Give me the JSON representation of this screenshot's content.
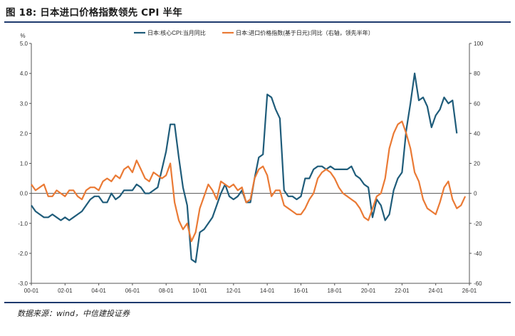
{
  "figure": {
    "title": "图 18: 日本进口价格指数领先 CPI 半年",
    "source": "数据来源：wind，中信建投证券"
  },
  "colors": {
    "core": "#1f5c7a",
    "import": "#ea7a35",
    "axis": "#555555",
    "zero": "#555555"
  },
  "chart_data": {
    "type": "line",
    "y_unit_left": "%",
    "ylim_left": [
      -3.0,
      5.0
    ],
    "ylim_right": [
      -60,
      100
    ],
    "xlim": [
      2000,
      2026
    ],
    "left_ticks": [
      "5.0",
      "4.0",
      "3.0",
      "2.0",
      "1.0",
      "0.0",
      "-1.0",
      "-2.0",
      "-3.0"
    ],
    "right_ticks": [
      "100",
      "80",
      "60",
      "40",
      "20",
      "0",
      "-20",
      "-40",
      "-60"
    ],
    "x_ticks": [
      "00-01",
      "02-01",
      "04-01",
      "06-01",
      "08-01",
      "10-01",
      "12-01",
      "14-01",
      "16-01",
      "18-01",
      "20-01",
      "22-01",
      "24-01",
      "26-01"
    ],
    "series": [
      {
        "name": "日本:核心CPI:当月同比",
        "axis": "left",
        "x": [
          2000.0,
          2000.25,
          2000.5,
          2000.75,
          2001.0,
          2001.25,
          2001.5,
          2001.75,
          2002.0,
          2002.25,
          2002.5,
          2002.75,
          2003.0,
          2003.25,
          2003.5,
          2003.75,
          2004.0,
          2004.25,
          2004.5,
          2004.75,
          2005.0,
          2005.25,
          2005.5,
          2005.75,
          2006.0,
          2006.25,
          2006.5,
          2006.75,
          2007.0,
          2007.25,
          2007.5,
          2007.75,
          2008.0,
          2008.25,
          2008.5,
          2008.75,
          2009.0,
          2009.25,
          2009.5,
          2009.75,
          2010.0,
          2010.25,
          2010.5,
          2010.75,
          2011.0,
          2011.25,
          2011.5,
          2011.75,
          2012.0,
          2012.25,
          2012.5,
          2012.75,
          2013.0,
          2013.25,
          2013.5,
          2013.75,
          2014.0,
          2014.25,
          2014.5,
          2014.75,
          2015.0,
          2015.25,
          2015.5,
          2015.75,
          2016.0,
          2016.25,
          2016.5,
          2016.75,
          2017.0,
          2017.25,
          2017.5,
          2017.75,
          2018.0,
          2018.25,
          2018.5,
          2018.75,
          2019.0,
          2019.25,
          2019.5,
          2019.75,
          2020.0,
          2020.25,
          2020.5,
          2020.75,
          2021.0,
          2021.25,
          2021.5,
          2021.75,
          2022.0,
          2022.25,
          2022.5,
          2022.75,
          2023.0,
          2023.25,
          2023.5,
          2023.75,
          2024.0,
          2024.25,
          2024.5,
          2024.75,
          2025.0,
          2025.25
        ],
        "values": [
          -0.4,
          -0.6,
          -0.7,
          -0.8,
          -0.8,
          -0.7,
          -0.8,
          -0.9,
          -0.8,
          -0.9,
          -0.8,
          -0.7,
          -0.6,
          -0.4,
          -0.2,
          -0.1,
          -0.1,
          -0.3,
          -0.3,
          0.0,
          -0.2,
          -0.1,
          0.1,
          0.1,
          0.1,
          0.3,
          0.2,
          0.0,
          0.0,
          0.1,
          0.2,
          0.8,
          1.4,
          2.3,
          2.3,
          1.2,
          0.2,
          -0.4,
          -2.2,
          -2.3,
          -1.3,
          -1.2,
          -1.0,
          -0.8,
          -0.4,
          0.0,
          0.3,
          -0.1,
          -0.2,
          -0.1,
          0.1,
          -0.3,
          -0.3,
          0.5,
          1.2,
          1.3,
          3.3,
          3.2,
          2.8,
          2.5,
          0.1,
          -0.1,
          -0.1,
          -0.2,
          -0.1,
          0.5,
          0.5,
          0.8,
          0.9,
          0.9,
          0.8,
          0.9,
          0.8,
          0.8,
          0.8,
          0.8,
          0.9,
          0.6,
          0.5,
          0.3,
          0.2,
          -0.8,
          -0.2,
          -0.4,
          -0.9,
          -0.7,
          0.1,
          0.5,
          0.7,
          2.1,
          3.0,
          4.0,
          3.1,
          3.2,
          2.9,
          2.2,
          2.6,
          2.8,
          3.2,
          3.0,
          3.1,
          2.0
        ]
      },
      {
        "name": "日本:进口价格指数(基于日元):同比（右轴，领先半年）",
        "axis": "right",
        "x": [
          2000.0,
          2000.25,
          2000.5,
          2000.75,
          2001.0,
          2001.25,
          2001.5,
          2001.75,
          2002.0,
          2002.25,
          2002.5,
          2002.75,
          2003.0,
          2003.25,
          2003.5,
          2003.75,
          2004.0,
          2004.25,
          2004.5,
          2004.75,
          2005.0,
          2005.25,
          2005.5,
          2005.75,
          2006.0,
          2006.25,
          2006.5,
          2006.75,
          2007.0,
          2007.25,
          2007.5,
          2007.75,
          2008.0,
          2008.25,
          2008.5,
          2008.75,
          2009.0,
          2009.25,
          2009.5,
          2009.75,
          2010.0,
          2010.25,
          2010.5,
          2010.75,
          2011.0,
          2011.25,
          2011.5,
          2011.75,
          2012.0,
          2012.25,
          2012.5,
          2012.75,
          2013.0,
          2013.25,
          2013.5,
          2013.75,
          2014.0,
          2014.25,
          2014.5,
          2014.75,
          2015.0,
          2015.25,
          2015.5,
          2015.75,
          2016.0,
          2016.25,
          2016.5,
          2016.75,
          2017.0,
          2017.25,
          2017.5,
          2017.75,
          2018.0,
          2018.25,
          2018.5,
          2018.75,
          2019.0,
          2019.25,
          2019.5,
          2019.75,
          2020.0,
          2020.25,
          2020.5,
          2020.75,
          2021.0,
          2021.25,
          2021.5,
          2021.75,
          2022.0,
          2022.25,
          2022.5,
          2022.75,
          2023.0,
          2023.25,
          2023.5,
          2023.75,
          2024.0,
          2024.25,
          2024.5,
          2024.75,
          2025.0,
          2025.25,
          2025.5,
          2025.75
        ],
        "values": [
          6,
          2,
          4,
          6,
          -2,
          -2,
          2,
          0,
          -2,
          2,
          2,
          -2,
          -4,
          2,
          4,
          4,
          2,
          8,
          10,
          8,
          12,
          10,
          16,
          18,
          14,
          22,
          16,
          10,
          8,
          14,
          12,
          10,
          12,
          20,
          -6,
          -18,
          -24,
          -20,
          -32,
          -26,
          -10,
          -2,
          6,
          2,
          -4,
          8,
          6,
          4,
          6,
          2,
          4,
          -6,
          -4,
          10,
          16,
          18,
          12,
          -2,
          2,
          2,
          -8,
          -10,
          -12,
          -14,
          -14,
          -10,
          -4,
          0,
          10,
          14,
          16,
          14,
          10,
          4,
          0,
          -2,
          -4,
          -6,
          -10,
          -16,
          -18,
          -10,
          -2,
          0,
          10,
          30,
          40,
          46,
          48,
          40,
          30,
          14,
          8,
          -4,
          -10,
          -12,
          -14,
          -6,
          4,
          8,
          -4,
          -10,
          -8,
          -2
        ]
      }
    ]
  }
}
